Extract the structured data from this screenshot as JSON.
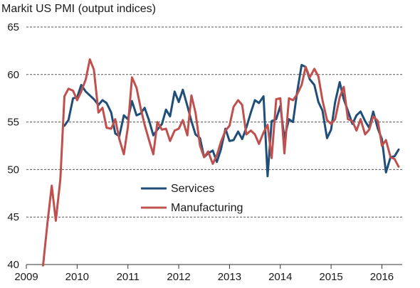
{
  "chart_data": {
    "type": "line",
    "title": "Markit US PMI (output indices)",
    "xlabel": "",
    "ylabel": "",
    "xlim": [
      2009,
      2016.4
    ],
    "ylim": [
      40,
      65
    ],
    "x_ticks": [
      2009,
      2010,
      2011,
      2012,
      2013,
      2014,
      2015,
      2016
    ],
    "y_ticks": [
      40,
      45,
      50,
      55,
      60,
      65
    ],
    "grid": "horizontal dashed",
    "legend_position": "center-bottom",
    "series": [
      {
        "name": "Services",
        "color": "#1f4e79",
        "x": [
          2009.75,
          2009.83,
          2009.92,
          2010.0,
          2010.08,
          2010.17,
          2010.25,
          2010.33,
          2010.42,
          2010.5,
          2010.58,
          2010.67,
          2010.75,
          2010.83,
          2010.92,
          2011.0,
          2011.08,
          2011.17,
          2011.25,
          2011.33,
          2011.42,
          2011.5,
          2011.58,
          2011.67,
          2011.75,
          2011.83,
          2011.92,
          2012.0,
          2012.08,
          2012.17,
          2012.25,
          2012.33,
          2012.42,
          2012.5,
          2012.58,
          2012.67,
          2012.75,
          2012.83,
          2012.92,
          2013.0,
          2013.08,
          2013.17,
          2013.25,
          2013.33,
          2013.42,
          2013.5,
          2013.58,
          2013.67,
          2013.75,
          2013.83,
          2013.92,
          2014.0,
          2014.08,
          2014.17,
          2014.25,
          2014.33,
          2014.42,
          2014.5,
          2014.58,
          2014.67,
          2014.75,
          2014.83,
          2014.92,
          2015.0,
          2015.08,
          2015.17,
          2015.25,
          2015.33,
          2015.42,
          2015.5,
          2015.58,
          2015.67,
          2015.75,
          2015.83,
          2015.92,
          2016.0,
          2016.08,
          2016.17,
          2016.25,
          2016.33
        ],
        "values": [
          54.6,
          55.2,
          57.5,
          57.6,
          58.9,
          58.2,
          57.8,
          57.4,
          56.8,
          57.3,
          57.0,
          56.0,
          53.8,
          53.5,
          55.7,
          55.3,
          57.2,
          55.7,
          55.9,
          56.5,
          55.1,
          53.6,
          54.2,
          54.8,
          56.3,
          55.6,
          58.2,
          57.1,
          58.4,
          56.7,
          55.1,
          53.7,
          53.3,
          51.3,
          51.7,
          52.0,
          50.8,
          52.1,
          54.3,
          53.0,
          53.1,
          54.0,
          53.2,
          54.4,
          56.0,
          57.3,
          57.0,
          57.7,
          49.3,
          55.1,
          55.3,
          56.7,
          53.3,
          55.3,
          55.0,
          58.1,
          61.0,
          60.8,
          59.5,
          58.9,
          57.1,
          56.2,
          53.3,
          54.2,
          57.1,
          59.2,
          57.4,
          56.2,
          54.8,
          55.7,
          56.1,
          55.1,
          54.4,
          56.1,
          54.3,
          53.2,
          49.7,
          51.3,
          51.4,
          52.1
        ]
      },
      {
        "name": "Manufacturing",
        "color": "#c0504d",
        "x": [
          2009.33,
          2009.42,
          2009.5,
          2009.58,
          2009.67,
          2009.75,
          2009.83,
          2009.92,
          2010.0,
          2010.08,
          2010.17,
          2010.25,
          2010.33,
          2010.42,
          2010.5,
          2010.58,
          2010.67,
          2010.75,
          2010.83,
          2010.92,
          2011.0,
          2011.08,
          2011.17,
          2011.25,
          2011.33,
          2011.42,
          2011.5,
          2011.58,
          2011.67,
          2011.75,
          2011.83,
          2011.92,
          2012.0,
          2012.08,
          2012.17,
          2012.25,
          2012.33,
          2012.42,
          2012.5,
          2012.58,
          2012.67,
          2012.75,
          2012.83,
          2012.92,
          2013.0,
          2013.08,
          2013.17,
          2013.25,
          2013.33,
          2013.42,
          2013.5,
          2013.58,
          2013.67,
          2013.75,
          2013.83,
          2013.92,
          2014.0,
          2014.08,
          2014.17,
          2014.25,
          2014.33,
          2014.42,
          2014.5,
          2014.58,
          2014.67,
          2014.75,
          2014.83,
          2014.92,
          2015.0,
          2015.08,
          2015.17,
          2015.25,
          2015.33,
          2015.42,
          2015.5,
          2015.58,
          2015.67,
          2015.75,
          2015.83,
          2015.92,
          2016.0,
          2016.08,
          2016.17,
          2016.25,
          2016.33
        ],
        "values": [
          39.9,
          44.6,
          48.3,
          44.6,
          49.0,
          57.7,
          58.5,
          58.3,
          57.3,
          58.2,
          59.5,
          61.6,
          60.5,
          56.0,
          56.5,
          54.4,
          54.3,
          55.3,
          53.2,
          51.6,
          54.5,
          59.7,
          58.6,
          56.5,
          54.7,
          53.0,
          51.6,
          55.0,
          54.2,
          54.3,
          53.0,
          54.1,
          54.3,
          55.2,
          53.6,
          57.8,
          56.0,
          52.5,
          51.3,
          51.9,
          50.6,
          51.5,
          52.9,
          54.1,
          54.6,
          56.6,
          57.3,
          56.8,
          53.7,
          54.1,
          53.7,
          52.7,
          53.9,
          54.7,
          51.2,
          57.4,
          57.5,
          51.7,
          57.5,
          57.3,
          57.9,
          58.9,
          60.8,
          59.7,
          60.6,
          59.8,
          57.3,
          55.2,
          54.8,
          55.3,
          57.6,
          58.7,
          55.3,
          55.1,
          54.1,
          55.3,
          53.7,
          54.2,
          55.6,
          55.1,
          52.5,
          53.1,
          51.3,
          51.1,
          50.3
        ]
      }
    ]
  }
}
